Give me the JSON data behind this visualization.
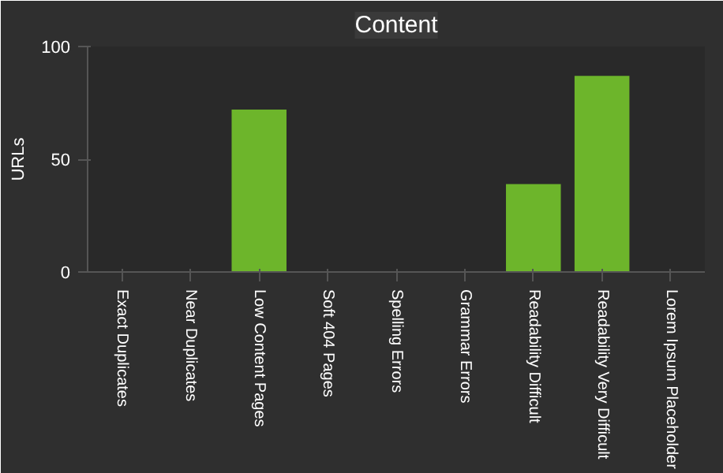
{
  "chart_data": {
    "type": "bar",
    "title": "Content",
    "ylabel": "URLs",
    "categories": [
      "Exact Duplicates",
      "Near Duplicates",
      "Low Content Pages",
      "Soft 404 Pages",
      "Spelling Errors",
      "Grammar Errors",
      "Readability Difficult",
      "Readability Very Difficult",
      "Lorem Ipsum Placeholder"
    ],
    "values": [
      0,
      0,
      72,
      0,
      0,
      0,
      39,
      87,
      0
    ],
    "color": "#6db52b",
    "ylim": [
      0,
      100
    ],
    "yticks": [
      0,
      50,
      100
    ],
    "grid": false
  }
}
